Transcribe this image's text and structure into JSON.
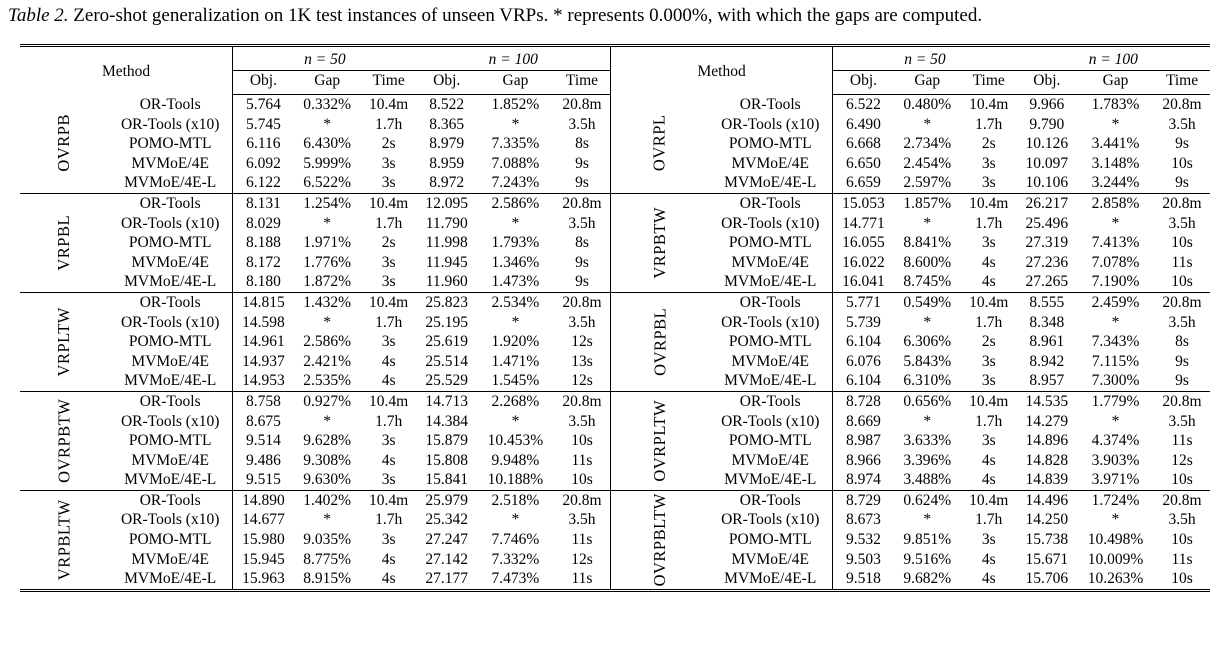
{
  "caption": {
    "label": "Table 2.",
    "text": " Zero-shot generalization on 1K test instances of unseen VRPs. * represents 0.000%, with which the gaps are computed."
  },
  "header": {
    "method": "Method",
    "n50": "n = 50",
    "n100": "n = 100",
    "obj": "Obj.",
    "gap": "Gap",
    "time": "Time"
  },
  "rows": [
    {
      "left": {
        "name": "OVRPB",
        "data": [
          [
            "OR-Tools",
            "5.764",
            "0.332%",
            "10.4m",
            "8.522",
            "1.852%",
            "20.8m"
          ],
          [
            "OR-Tools (x10)",
            "5.745",
            "*",
            "1.7h",
            "8.365",
            "*",
            "3.5h"
          ],
          [
            "POMO-MTL",
            "6.116",
            "6.430%",
            "2s",
            "8.979",
            "7.335%",
            "8s"
          ],
          [
            "MVMoE/4E",
            "6.092",
            "5.999%",
            "3s",
            "8.959",
            "7.088%",
            "9s"
          ],
          [
            "MVMoE/4E-L",
            "6.122",
            "6.522%",
            "3s",
            "8.972",
            "7.243%",
            "9s"
          ]
        ]
      },
      "right": {
        "name": "OVRPL",
        "data": [
          [
            "OR-Tools",
            "6.522",
            "0.480%",
            "10.4m",
            "9.966",
            "1.783%",
            "20.8m"
          ],
          [
            "OR-Tools (x10)",
            "6.490",
            "*",
            "1.7h",
            "9.790",
            "*",
            "3.5h"
          ],
          [
            "POMO-MTL",
            "6.668",
            "2.734%",
            "2s",
            "10.126",
            "3.441%",
            "9s"
          ],
          [
            "MVMoE/4E",
            "6.650",
            "2.454%",
            "3s",
            "10.097",
            "3.148%",
            "10s"
          ],
          [
            "MVMoE/4E-L",
            "6.659",
            "2.597%",
            "3s",
            "10.106",
            "3.244%",
            "9s"
          ]
        ]
      }
    },
    {
      "left": {
        "name": "VRPBL",
        "data": [
          [
            "OR-Tools",
            "8.131",
            "1.254%",
            "10.4m",
            "12.095",
            "2.586%",
            "20.8m"
          ],
          [
            "OR-Tools (x10)",
            "8.029",
            "*",
            "1.7h",
            "11.790",
            "*",
            "3.5h"
          ],
          [
            "POMO-MTL",
            "8.188",
            "1.971%",
            "2s",
            "11.998",
            "1.793%",
            "8s"
          ],
          [
            "MVMoE/4E",
            "8.172",
            "1.776%",
            "3s",
            "11.945",
            "1.346%",
            "9s"
          ],
          [
            "MVMoE/4E-L",
            "8.180",
            "1.872%",
            "3s",
            "11.960",
            "1.473%",
            "9s"
          ]
        ]
      },
      "right": {
        "name": "VRPBTW",
        "data": [
          [
            "OR-Tools",
            "15.053",
            "1.857%",
            "10.4m",
            "26.217",
            "2.858%",
            "20.8m"
          ],
          [
            "OR-Tools (x10)",
            "14.771",
            "*",
            "1.7h",
            "25.496",
            "*",
            "3.5h"
          ],
          [
            "POMO-MTL",
            "16.055",
            "8.841%",
            "3s",
            "27.319",
            "7.413%",
            "10s"
          ],
          [
            "MVMoE/4E",
            "16.022",
            "8.600%",
            "4s",
            "27.236",
            "7.078%",
            "11s"
          ],
          [
            "MVMoE/4E-L",
            "16.041",
            "8.745%",
            "4s",
            "27.265",
            "7.190%",
            "10s"
          ]
        ]
      }
    },
    {
      "left": {
        "name": "VRPLTW",
        "data": [
          [
            "OR-Tools",
            "14.815",
            "1.432%",
            "10.4m",
            "25.823",
            "2.534%",
            "20.8m"
          ],
          [
            "OR-Tools (x10)",
            "14.598",
            "*",
            "1.7h",
            "25.195",
            "*",
            "3.5h"
          ],
          [
            "POMO-MTL",
            "14.961",
            "2.586%",
            "3s",
            "25.619",
            "1.920%",
            "12s"
          ],
          [
            "MVMoE/4E",
            "14.937",
            "2.421%",
            "4s",
            "25.514",
            "1.471%",
            "13s"
          ],
          [
            "MVMoE/4E-L",
            "14.953",
            "2.535%",
            "4s",
            "25.529",
            "1.545%",
            "12s"
          ]
        ]
      },
      "right": {
        "name": "OVRPBL",
        "data": [
          [
            "OR-Tools",
            "5.771",
            "0.549%",
            "10.4m",
            "8.555",
            "2.459%",
            "20.8m"
          ],
          [
            "OR-Tools (x10)",
            "5.739",
            "*",
            "1.7h",
            "8.348",
            "*",
            "3.5h"
          ],
          [
            "POMO-MTL",
            "6.104",
            "6.306%",
            "2s",
            "8.961",
            "7.343%",
            "8s"
          ],
          [
            "MVMoE/4E",
            "6.076",
            "5.843%",
            "3s",
            "8.942",
            "7.115%",
            "9s"
          ],
          [
            "MVMoE/4E-L",
            "6.104",
            "6.310%",
            "3s",
            "8.957",
            "7.300%",
            "9s"
          ]
        ]
      }
    },
    {
      "left": {
        "name": "OVRPBTW",
        "data": [
          [
            "OR-Tools",
            "8.758",
            "0.927%",
            "10.4m",
            "14.713",
            "2.268%",
            "20.8m"
          ],
          [
            "OR-Tools (x10)",
            "8.675",
            "*",
            "1.7h",
            "14.384",
            "*",
            "3.5h"
          ],
          [
            "POMO-MTL",
            "9.514",
            "9.628%",
            "3s",
            "15.879",
            "10.453%",
            "10s"
          ],
          [
            "MVMoE/4E",
            "9.486",
            "9.308%",
            "4s",
            "15.808",
            "9.948%",
            "11s"
          ],
          [
            "MVMoE/4E-L",
            "9.515",
            "9.630%",
            "3s",
            "15.841",
            "10.188%",
            "10s"
          ]
        ]
      },
      "right": {
        "name": "OVRPLTW",
        "data": [
          [
            "OR-Tools",
            "8.728",
            "0.656%",
            "10.4m",
            "14.535",
            "1.779%",
            "20.8m"
          ],
          [
            "OR-Tools (x10)",
            "8.669",
            "*",
            "1.7h",
            "14.279",
            "*",
            "3.5h"
          ],
          [
            "POMO-MTL",
            "8.987",
            "3.633%",
            "3s",
            "14.896",
            "4.374%",
            "11s"
          ],
          [
            "MVMoE/4E",
            "8.966",
            "3.396%",
            "4s",
            "14.828",
            "3.903%",
            "12s"
          ],
          [
            "MVMoE/4E-L",
            "8.974",
            "3.488%",
            "4s",
            "14.839",
            "3.971%",
            "10s"
          ]
        ]
      }
    },
    {
      "left": {
        "name": "VRPBLTW",
        "data": [
          [
            "OR-Tools",
            "14.890",
            "1.402%",
            "10.4m",
            "25.979",
            "2.518%",
            "20.8m"
          ],
          [
            "OR-Tools (x10)",
            "14.677",
            "*",
            "1.7h",
            "25.342",
            "*",
            "3.5h"
          ],
          [
            "POMO-MTL",
            "15.980",
            "9.035%",
            "3s",
            "27.247",
            "7.746%",
            "11s"
          ],
          [
            "MVMoE/4E",
            "15.945",
            "8.775%",
            "4s",
            "27.142",
            "7.332%",
            "12s"
          ],
          [
            "MVMoE/4E-L",
            "15.963",
            "8.915%",
            "4s",
            "27.177",
            "7.473%",
            "11s"
          ]
        ]
      },
      "right": {
        "name": "OVRPBLTW",
        "data": [
          [
            "OR-Tools",
            "8.729",
            "0.624%",
            "10.4m",
            "14.496",
            "1.724%",
            "20.8m"
          ],
          [
            "OR-Tools (x10)",
            "8.673",
            "*",
            "1.7h",
            "14.250",
            "*",
            "3.5h"
          ],
          [
            "POMO-MTL",
            "9.532",
            "9.851%",
            "3s",
            "15.738",
            "10.498%",
            "10s"
          ],
          [
            "MVMoE/4E",
            "9.503",
            "9.516%",
            "4s",
            "15.671",
            "10.009%",
            "11s"
          ],
          [
            "MVMoE/4E-L",
            "9.518",
            "9.682%",
            "4s",
            "15.706",
            "10.263%",
            "10s"
          ]
        ]
      }
    }
  ]
}
